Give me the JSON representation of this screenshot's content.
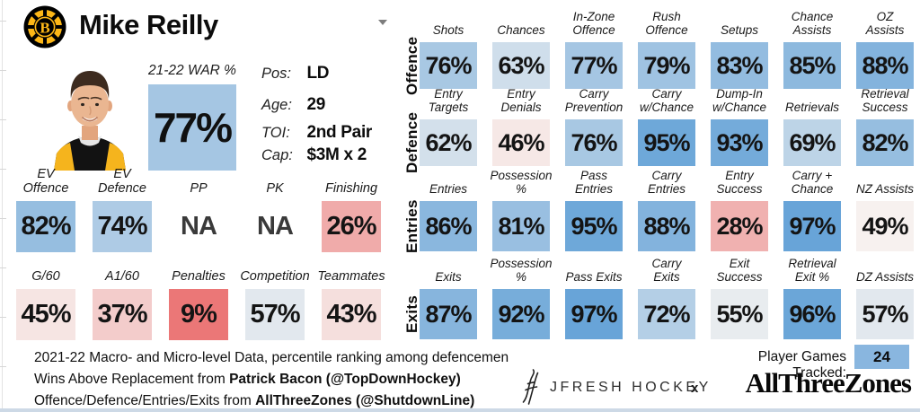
{
  "header": {
    "team": "Boston Bruins",
    "logo_icon": "boston-bruins-logo",
    "player_name": "Mike Reilly"
  },
  "summary": {
    "info": [
      {
        "label": "Pos:",
        "value": "LD"
      },
      {
        "label": "Age:",
        "value": "29"
      },
      {
        "label": "TOI:",
        "value": "2nd Pair"
      },
      {
        "label": "Cap:",
        "value": "$3M x 2"
      }
    ]
  },
  "chart_data": {
    "type": "heatmap",
    "title": "Mike Reilly 2021-22 percentile rankings among defencemen",
    "na_text": "NA",
    "scale": {
      "min": 0,
      "mid": 50,
      "max": 100,
      "low_color": "#e85c5c",
      "mid_color": "#f7f4f2",
      "high_color": "#5f9fd6"
    },
    "war": {
      "label": "21-22 WAR %",
      "value": 77
    },
    "skater_rows": [
      {
        "cells": [
          {
            "label": "EV Offence",
            "value": 82
          },
          {
            "label": "EV Defence",
            "value": 74
          },
          {
            "label": "PP",
            "value": null
          },
          {
            "label": "PK",
            "value": null
          },
          {
            "label": "Finishing",
            "value": 26
          }
        ]
      },
      {
        "cells": [
          {
            "label": "G/60",
            "value": 45
          },
          {
            "label": "A1/60",
            "value": 37
          },
          {
            "label": "Penalties",
            "value": 9
          },
          {
            "label": "Competition",
            "value": 57
          },
          {
            "label": "Teammates",
            "value": 43
          }
        ]
      }
    ],
    "zone_rows": [
      {
        "label": "Offence",
        "cells": [
          {
            "label": "Shots",
            "value": 76
          },
          {
            "label": "Chances",
            "value": 63
          },
          {
            "label": "In-Zone\nOffence",
            "value": 77
          },
          {
            "label": "Rush\nOffence",
            "value": 79
          },
          {
            "label": "Setups",
            "value": 83
          },
          {
            "label": "Chance\nAssists",
            "value": 85
          },
          {
            "label": "OZ Assists",
            "value": 88
          }
        ]
      },
      {
        "label": "Defence",
        "cells": [
          {
            "label": "Entry\nTargets",
            "value": 62
          },
          {
            "label": "Entry\nDenials",
            "value": 46
          },
          {
            "label": "Carry\nPrevention",
            "value": 76
          },
          {
            "label": "Carry\nw/Chance",
            "value": 95
          },
          {
            "label": "Dump-In\nw/Chance",
            "value": 93
          },
          {
            "label": "Retrievals",
            "value": 69
          },
          {
            "label": "Retrieval\nSuccess",
            "value": 82
          }
        ]
      },
      {
        "label": "Entries",
        "cells": [
          {
            "label": "Entries",
            "value": 86
          },
          {
            "label": "Possession %",
            "value": 81
          },
          {
            "label": "Pass Entries",
            "value": 95
          },
          {
            "label": "Carry Entries",
            "value": 88
          },
          {
            "label": "Entry Success",
            "value": 28
          },
          {
            "label": "Carry + Chance",
            "value": 97
          },
          {
            "label": "NZ Assists",
            "value": 49
          }
        ]
      },
      {
        "label": "Exits",
        "cells": [
          {
            "label": "Exits",
            "value": 87
          },
          {
            "label": "Possession %",
            "value": 92
          },
          {
            "label": "Pass Exits",
            "value": 97
          },
          {
            "label": "Carry Exits",
            "value": 72
          },
          {
            "label": "Exit Success",
            "value": 55
          },
          {
            "label": "Retrieval Exit %",
            "value": 96
          },
          {
            "label": "DZ Assists",
            "value": 57
          }
        ]
      }
    ]
  },
  "footer": {
    "line1": "2021-22 Macro- and Micro-level Data, percentile ranking among defencemen",
    "line2_prefix": "Wins Above Replacement from ",
    "line2_bold": "Patrick Bacon (@TopDownHockey)",
    "line3_prefix": "Offence/Defence/Entries/Exits from ",
    "line3_bold": "AllThreeZones (@ShutdownLine)",
    "games_tracked_label": "Player Games Tracked:",
    "games_tracked_value": "24",
    "jfresh_text": "JFRESH HOCKEY",
    "collab_x": "x",
    "atz_text": "AllThreeZones"
  },
  "colors": {
    "games_box": "#89b6df",
    "bottom_strip": "#cdd9e6",
    "bruins_gold": "#fdb717",
    "bruins_black": "#000000"
  }
}
